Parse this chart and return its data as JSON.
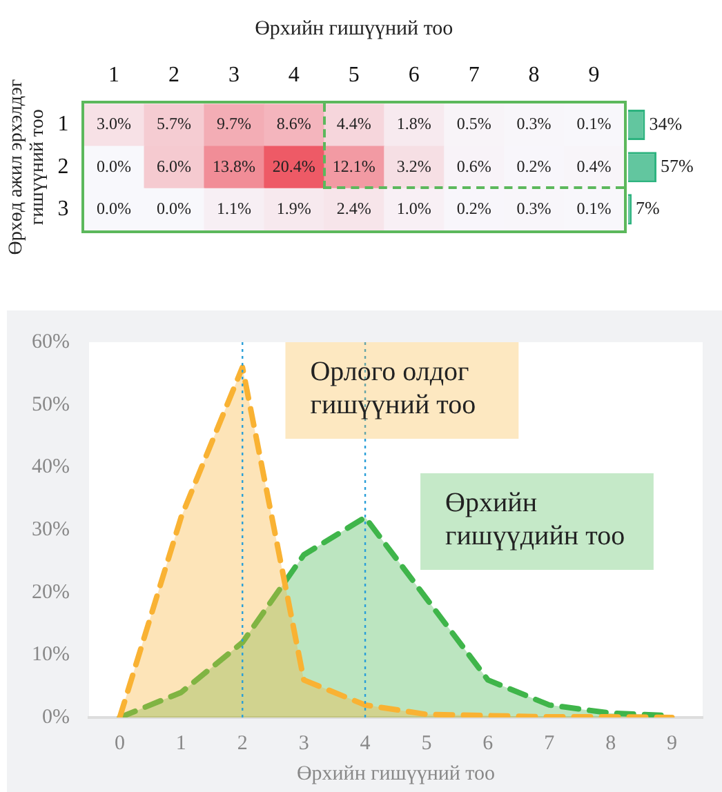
{
  "chart_data": [
    {
      "type": "heatmap",
      "xlabel": "Өрхийн гишүүний тоо",
      "ylabel": "Өрхөд ажил эрхэлдэг гишүүний тоо",
      "categories": [
        "1",
        "2",
        "3",
        "4",
        "5",
        "6",
        "7",
        "8",
        "9"
      ],
      "y_categories": [
        "1",
        "2",
        "3"
      ],
      "cells": [
        [
          3.0,
          5.7,
          9.7,
          8.6,
          4.4,
          1.8,
          0.5,
          0.3,
          0.1
        ],
        [
          0.0,
          6.0,
          13.8,
          20.4,
          12.1,
          3.2,
          0.6,
          0.2,
          0.4
        ],
        [
          0.0,
          0.0,
          1.1,
          1.9,
          2.4,
          1.0,
          0.2,
          0.3,
          0.1
        ]
      ],
      "cell_labels": [
        [
          "3.0%",
          "5.7%",
          "9.7%",
          "8.6%",
          "4.4%",
          "1.8%",
          "0.5%",
          "0.3%",
          "0.1%"
        ],
        [
          "0.0%",
          "6.0%",
          "13.8%",
          "20.4%",
          "12.1%",
          "3.2%",
          "0.6%",
          "0.2%",
          "0.4%"
        ],
        [
          "0.0%",
          "0.0%",
          "1.1%",
          "1.9%",
          "2.4%",
          "1.0%",
          "0.2%",
          "0.3%",
          "0.1%"
        ]
      ]
    },
    {
      "type": "bar",
      "orientation": "horizontal",
      "categories": [
        null,
        null,
        null
      ],
      "values": [
        34,
        57,
        7
      ],
      "color": "#2db37f",
      "value_labels": [
        "34%",
        "57%",
        "7%"
      ]
    },
    {
      "type": "area",
      "xlabel": "Өрхийн гишүүний тоо",
      "x": [
        0,
        1,
        2,
        3,
        4,
        5,
        6,
        7,
        8,
        9
      ],
      "series": [
        {
          "name": "Орлого олдог гишүүний тоо",
          "color": "#f9b233",
          "values": [
            0,
            32,
            56,
            6,
            2,
            0.5,
            0.3,
            0.1,
            0.1,
            0
          ]
        },
        {
          "name": "Өрхийн гишүүдийн тоо",
          "color": "#3fb54a",
          "values": [
            0,
            4,
            12,
            26,
            32,
            19,
            6,
            2,
            0.7,
            0.3
          ]
        }
      ],
      "xlim": [
        -0.5,
        9.5
      ],
      "xticks": [
        0,
        1,
        2,
        3,
        4,
        5,
        6,
        7,
        8,
        9
      ],
      "ylim": [
        0,
        60
      ],
      "yticks": [
        {
          "value": 0,
          "label": "0%"
        },
        {
          "value": 10,
          "label": "10%"
        },
        {
          "value": 20,
          "label": "20%"
        },
        {
          "value": 30,
          "label": "30%"
        },
        {
          "value": 40,
          "label": "40%"
        },
        {
          "value": 50,
          "label": "50%"
        },
        {
          "value": 60,
          "label": "60%"
        }
      ],
      "grid": false,
      "legend": "top right",
      "marker": "none",
      "line_style": "dashed",
      "ref_lines": [
        {
          "axis": "x",
          "value": 2,
          "color": "#2a9fd8",
          "line_style": "dotted"
        },
        {
          "axis": "x",
          "value": 4,
          "color": "#2a9fd8",
          "line_style": "dotted"
        }
      ]
    }
  ]
}
